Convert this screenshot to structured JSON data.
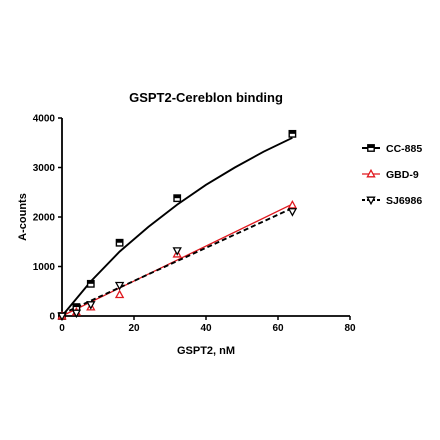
{
  "chart_data": {
    "type": "scatter",
    "title": "GSPT2-Cereblon binding",
    "xlabel": "GSPT2, nM",
    "ylabel": "A-counts",
    "xlim": [
      0,
      80
    ],
    "ylim": [
      0,
      4000
    ],
    "xticks": [
      0,
      20,
      40,
      60,
      80
    ],
    "yticks": [
      0,
      1000,
      2000,
      3000,
      4000
    ],
    "grid": false,
    "legend": "right",
    "series": [
      {
        "name": "CC-885",
        "color": "#000000",
        "marker": "square",
        "line": "solid",
        "x": [
          0,
          4,
          8,
          16,
          32,
          64
        ],
        "y": [
          0,
          180,
          650,
          1480,
          2380,
          3680
        ],
        "fit": [
          [
            0,
            0
          ],
          [
            8,
            700
          ],
          [
            16,
            1300
          ],
          [
            24,
            1800
          ],
          [
            32,
            2250
          ],
          [
            40,
            2650
          ],
          [
            48,
            3000
          ],
          [
            56,
            3320
          ],
          [
            64,
            3600
          ]
        ]
      },
      {
        "name": "GBD-9",
        "color": "#e0191f",
        "marker": "triangle-up",
        "line": "solid",
        "x": [
          0,
          4,
          8,
          16,
          32,
          64
        ],
        "y": [
          0,
          80,
          180,
          430,
          1250,
          2240
        ],
        "fit": [
          [
            0,
            0
          ],
          [
            64,
            2260
          ]
        ]
      },
      {
        "name": "SJ6986",
        "color": "#000000",
        "marker": "triangle-down",
        "line": "dashed",
        "x": [
          0,
          4,
          8,
          16,
          32,
          64
        ],
        "y": [
          0,
          60,
          230,
          620,
          1320,
          2110
        ],
        "fit": [
          [
            0,
            40
          ],
          [
            64,
            2180
          ]
        ]
      }
    ]
  }
}
